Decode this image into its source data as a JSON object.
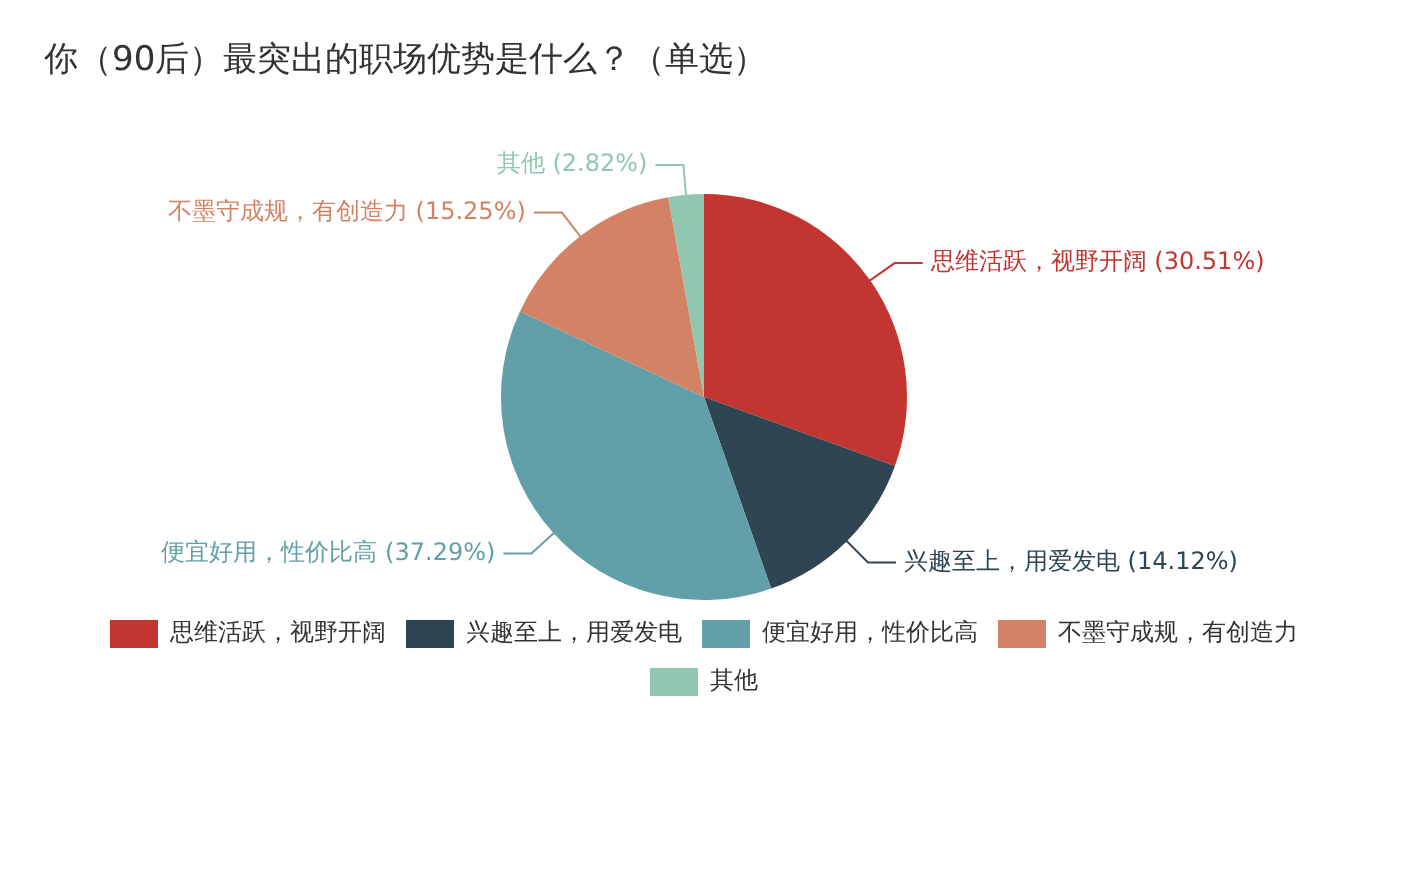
{
  "chart_data": {
    "type": "pie",
    "title": "你（90后）最突出的职场优势是什么？（单选）",
    "categories": [
      "思维活跃，视野开阔",
      "兴趣至上，用爱发电",
      "便宜好用，性价比高",
      "不墨守成规，有创造力",
      "其他"
    ],
    "values": [
      30.51,
      14.12,
      37.29,
      15.25,
      2.82
    ],
    "value_labels": [
      "(30.51%)",
      "(14.12%)",
      "(37.29%)",
      "(15.25%)",
      "(2.82%)"
    ],
    "colors": [
      "#c23531",
      "#2f4554",
      "#61a0a8",
      "#d48265",
      "#91c7ae"
    ],
    "legend": "bottom"
  }
}
